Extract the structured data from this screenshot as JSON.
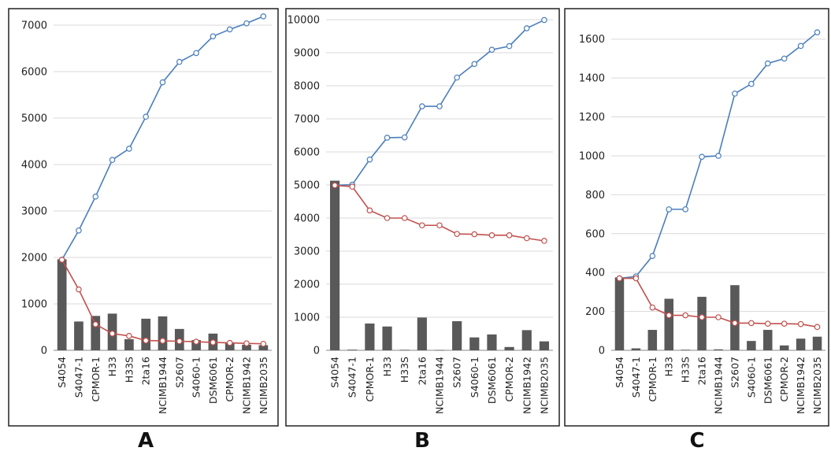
{
  "colors": {
    "bar": "#595959",
    "cumulative_line": "#4a7ebb",
    "decreasing_line": "#c0504d",
    "marker_fill": "#ffffff"
  },
  "panels": [
    {
      "letter": "A"
    },
    {
      "letter": "B"
    },
    {
      "letter": "C"
    }
  ],
  "chart_data": [
    {
      "type": "bar",
      "panel": "A",
      "categories": [
        "S4054",
        "S4047-1",
        "CPMOR-1",
        "H33",
        "H33S",
        "2ta16",
        "NCIMB1944",
        "S2607",
        "S4060-1",
        "DSM6061",
        "CPMOR-2",
        "NCIMB1942",
        "NCIMB2035"
      ],
      "ylim": [
        0,
        7000
      ],
      "yticks": [
        0,
        1000,
        2000,
        3000,
        4000,
        5000,
        6000,
        7000
      ],
      "grid": true,
      "series": [
        {
          "kind": "bar",
          "values": [
            1960,
            620,
            740,
            790,
            240,
            680,
            730,
            460,
            220,
            360,
            160,
            120,
            110
          ]
        },
        {
          "kind": "line",
          "color": "blue",
          "values": [
            1950,
            2580,
            3310,
            4100,
            4340,
            5030,
            5770,
            6210,
            6400,
            6760,
            6910,
            7040,
            7190
          ]
        },
        {
          "kind": "line",
          "color": "red",
          "values": [
            1950,
            1310,
            560,
            360,
            310,
            210,
            205,
            195,
            185,
            170,
            160,
            150,
            140
          ]
        }
      ]
    },
    {
      "type": "bar",
      "panel": "B",
      "categories": [
        "S4054",
        "S4047-1",
        "CPMOR-1",
        "H33",
        "H33S",
        "2ta16",
        "NCIMB1944",
        "S2607",
        "S4060-1",
        "DSM6061",
        "CPMOR-2",
        "NCIMB1942",
        "NCIMB2035"
      ],
      "ylim": [
        0,
        10000
      ],
      "yticks": [
        0,
        1000,
        2000,
        3000,
        4000,
        5000,
        6000,
        7000,
        8000,
        9000,
        10000
      ],
      "grid": true,
      "series": [
        {
          "kind": "bar",
          "values": [
            5130,
            20,
            810,
            720,
            15,
            990,
            10,
            880,
            390,
            480,
            100,
            610,
            270
          ]
        },
        {
          "kind": "line",
          "color": "blue",
          "values": [
            4990,
            5010,
            5770,
            6430,
            6440,
            7380,
            7380,
            8250,
            8660,
            9090,
            9200,
            9740,
            9990
          ]
        },
        {
          "kind": "line",
          "color": "red",
          "values": [
            4990,
            4950,
            4230,
            4000,
            4000,
            3780,
            3780,
            3520,
            3510,
            3480,
            3480,
            3390,
            3310
          ]
        }
      ]
    },
    {
      "type": "bar",
      "panel": "C",
      "categories": [
        "S4054",
        "S4047-1",
        "CPMOR-1",
        "H33",
        "H33S",
        "2ta16",
        "NCIMB1944",
        "S2607",
        "S4060-1",
        "DSM6061",
        "CPMOR-2",
        "NCIMB1942",
        "NCIMB2035"
      ],
      "ylim": [
        0,
        1700
      ],
      "yticks": [
        0,
        200,
        400,
        600,
        800,
        1000,
        1200,
        1400,
        1600
      ],
      "grid": true,
      "series": [
        {
          "kind": "bar",
          "values": [
            375,
            10,
            105,
            265,
            3,
            275,
            5,
            335,
            48,
            105,
            25,
            60,
            70
          ]
        },
        {
          "kind": "line",
          "color": "blue",
          "values": [
            370,
            380,
            485,
            725,
            725,
            995,
            1000,
            1320,
            1370,
            1475,
            1500,
            1565,
            1635
          ]
        },
        {
          "kind": "line",
          "color": "red",
          "values": [
            370,
            370,
            220,
            180,
            180,
            170,
            170,
            140,
            140,
            137,
            137,
            135,
            120
          ]
        }
      ]
    }
  ]
}
